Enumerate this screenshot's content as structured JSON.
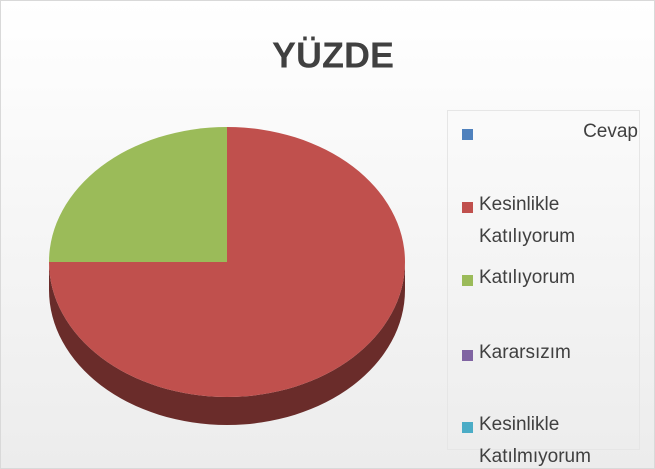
{
  "chart_data": {
    "type": "pie",
    "title": "YÜZDE",
    "categories": [
      "Cevap",
      "Kesinlikle Katılıyorum",
      "Katılıyorum",
      "Kararsızım",
      "Kesinlikle Katılmıyorum"
    ],
    "values": [
      0,
      75,
      25,
      0,
      0
    ],
    "colors": [
      "#4f81bd",
      "#c0504d",
      "#9bbb59",
      "#8064a2",
      "#4bacc6"
    ],
    "legend": "right"
  }
}
